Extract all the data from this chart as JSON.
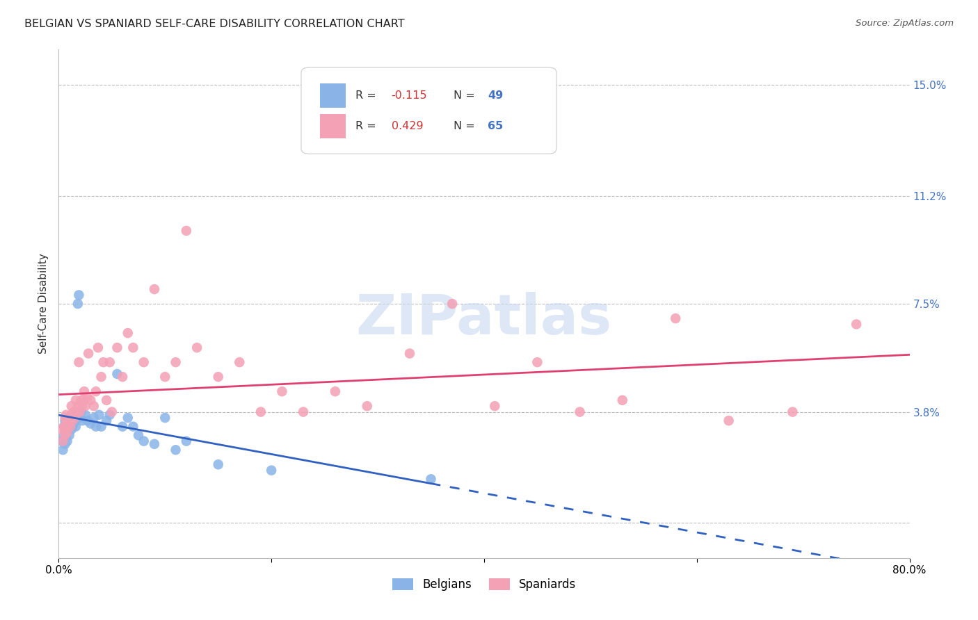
{
  "title": "BELGIAN VS SPANIARD SELF-CARE DISABILITY CORRELATION CHART",
  "source": "Source: ZipAtlas.com",
  "ylabel": "Self-Care Disability",
  "xlim": [
    0.0,
    0.8
  ],
  "ylim": [
    -0.012,
    0.162
  ],
  "yticks": [
    0.0,
    0.038,
    0.075,
    0.112,
    0.15
  ],
  "ytick_labels": [
    "",
    "3.8%",
    "7.5%",
    "11.2%",
    "15.0%"
  ],
  "xtick_labels": [
    "0.0%",
    "",
    "",
    "",
    "80.0%"
  ],
  "xticks": [
    0.0,
    0.2,
    0.4,
    0.6,
    0.8
  ],
  "belgian_color": "#8ab4e8",
  "spaniard_color": "#f4a0b5",
  "line_blue": "#3060c0",
  "line_pink": "#e04070",
  "belgian_R": -0.115,
  "belgian_N": 49,
  "spaniard_R": 0.429,
  "spaniard_N": 65,
  "watermark": "ZIPatlas",
  "background_color": "#ffffff",
  "grid_color": "#bbbbbb",
  "belgians_x": [
    0.003,
    0.004,
    0.005,
    0.005,
    0.006,
    0.006,
    0.006,
    0.007,
    0.007,
    0.008,
    0.008,
    0.009,
    0.01,
    0.01,
    0.011,
    0.012,
    0.013,
    0.013,
    0.014,
    0.015,
    0.016,
    0.017,
    0.018,
    0.019,
    0.02,
    0.021,
    0.022,
    0.025,
    0.027,
    0.03,
    0.033,
    0.035,
    0.038,
    0.04,
    0.045,
    0.048,
    0.055,
    0.06,
    0.065,
    0.07,
    0.075,
    0.08,
    0.09,
    0.1,
    0.11,
    0.12,
    0.15,
    0.2,
    0.35
  ],
  "belgians_y": [
    0.028,
    0.025,
    0.03,
    0.033,
    0.027,
    0.032,
    0.035,
    0.03,
    0.033,
    0.028,
    0.032,
    0.034,
    0.03,
    0.033,
    0.036,
    0.032,
    0.033,
    0.035,
    0.034,
    0.036,
    0.033,
    0.037,
    0.075,
    0.078,
    0.036,
    0.038,
    0.035,
    0.037,
    0.035,
    0.034,
    0.036,
    0.033,
    0.037,
    0.033,
    0.035,
    0.037,
    0.051,
    0.033,
    0.036,
    0.033,
    0.03,
    0.028,
    0.027,
    0.036,
    0.025,
    0.028,
    0.02,
    0.018,
    0.015
  ],
  "spaniards_x": [
    0.003,
    0.004,
    0.005,
    0.006,
    0.006,
    0.007,
    0.007,
    0.008,
    0.008,
    0.009,
    0.01,
    0.011,
    0.012,
    0.012,
    0.013,
    0.014,
    0.015,
    0.016,
    0.017,
    0.018,
    0.019,
    0.02,
    0.021,
    0.022,
    0.023,
    0.024,
    0.025,
    0.027,
    0.028,
    0.03,
    0.033,
    0.035,
    0.037,
    0.04,
    0.042,
    0.045,
    0.048,
    0.05,
    0.055,
    0.06,
    0.065,
    0.07,
    0.08,
    0.09,
    0.1,
    0.11,
    0.12,
    0.13,
    0.15,
    0.17,
    0.19,
    0.21,
    0.23,
    0.26,
    0.29,
    0.33,
    0.37,
    0.41,
    0.45,
    0.49,
    0.53,
    0.58,
    0.63,
    0.69,
    0.75
  ],
  "spaniards_y": [
    0.032,
    0.028,
    0.033,
    0.036,
    0.03,
    0.033,
    0.037,
    0.031,
    0.035,
    0.034,
    0.036,
    0.033,
    0.037,
    0.04,
    0.035,
    0.038,
    0.036,
    0.042,
    0.038,
    0.04,
    0.055,
    0.038,
    0.042,
    0.04,
    0.042,
    0.045,
    0.04,
    0.043,
    0.058,
    0.042,
    0.04,
    0.045,
    0.06,
    0.05,
    0.055,
    0.042,
    0.055,
    0.038,
    0.06,
    0.05,
    0.065,
    0.06,
    0.055,
    0.08,
    0.05,
    0.055,
    0.1,
    0.06,
    0.05,
    0.055,
    0.038,
    0.045,
    0.038,
    0.045,
    0.04,
    0.058,
    0.075,
    0.04,
    0.055,
    0.038,
    0.042,
    0.07,
    0.035,
    0.038,
    0.068
  ]
}
